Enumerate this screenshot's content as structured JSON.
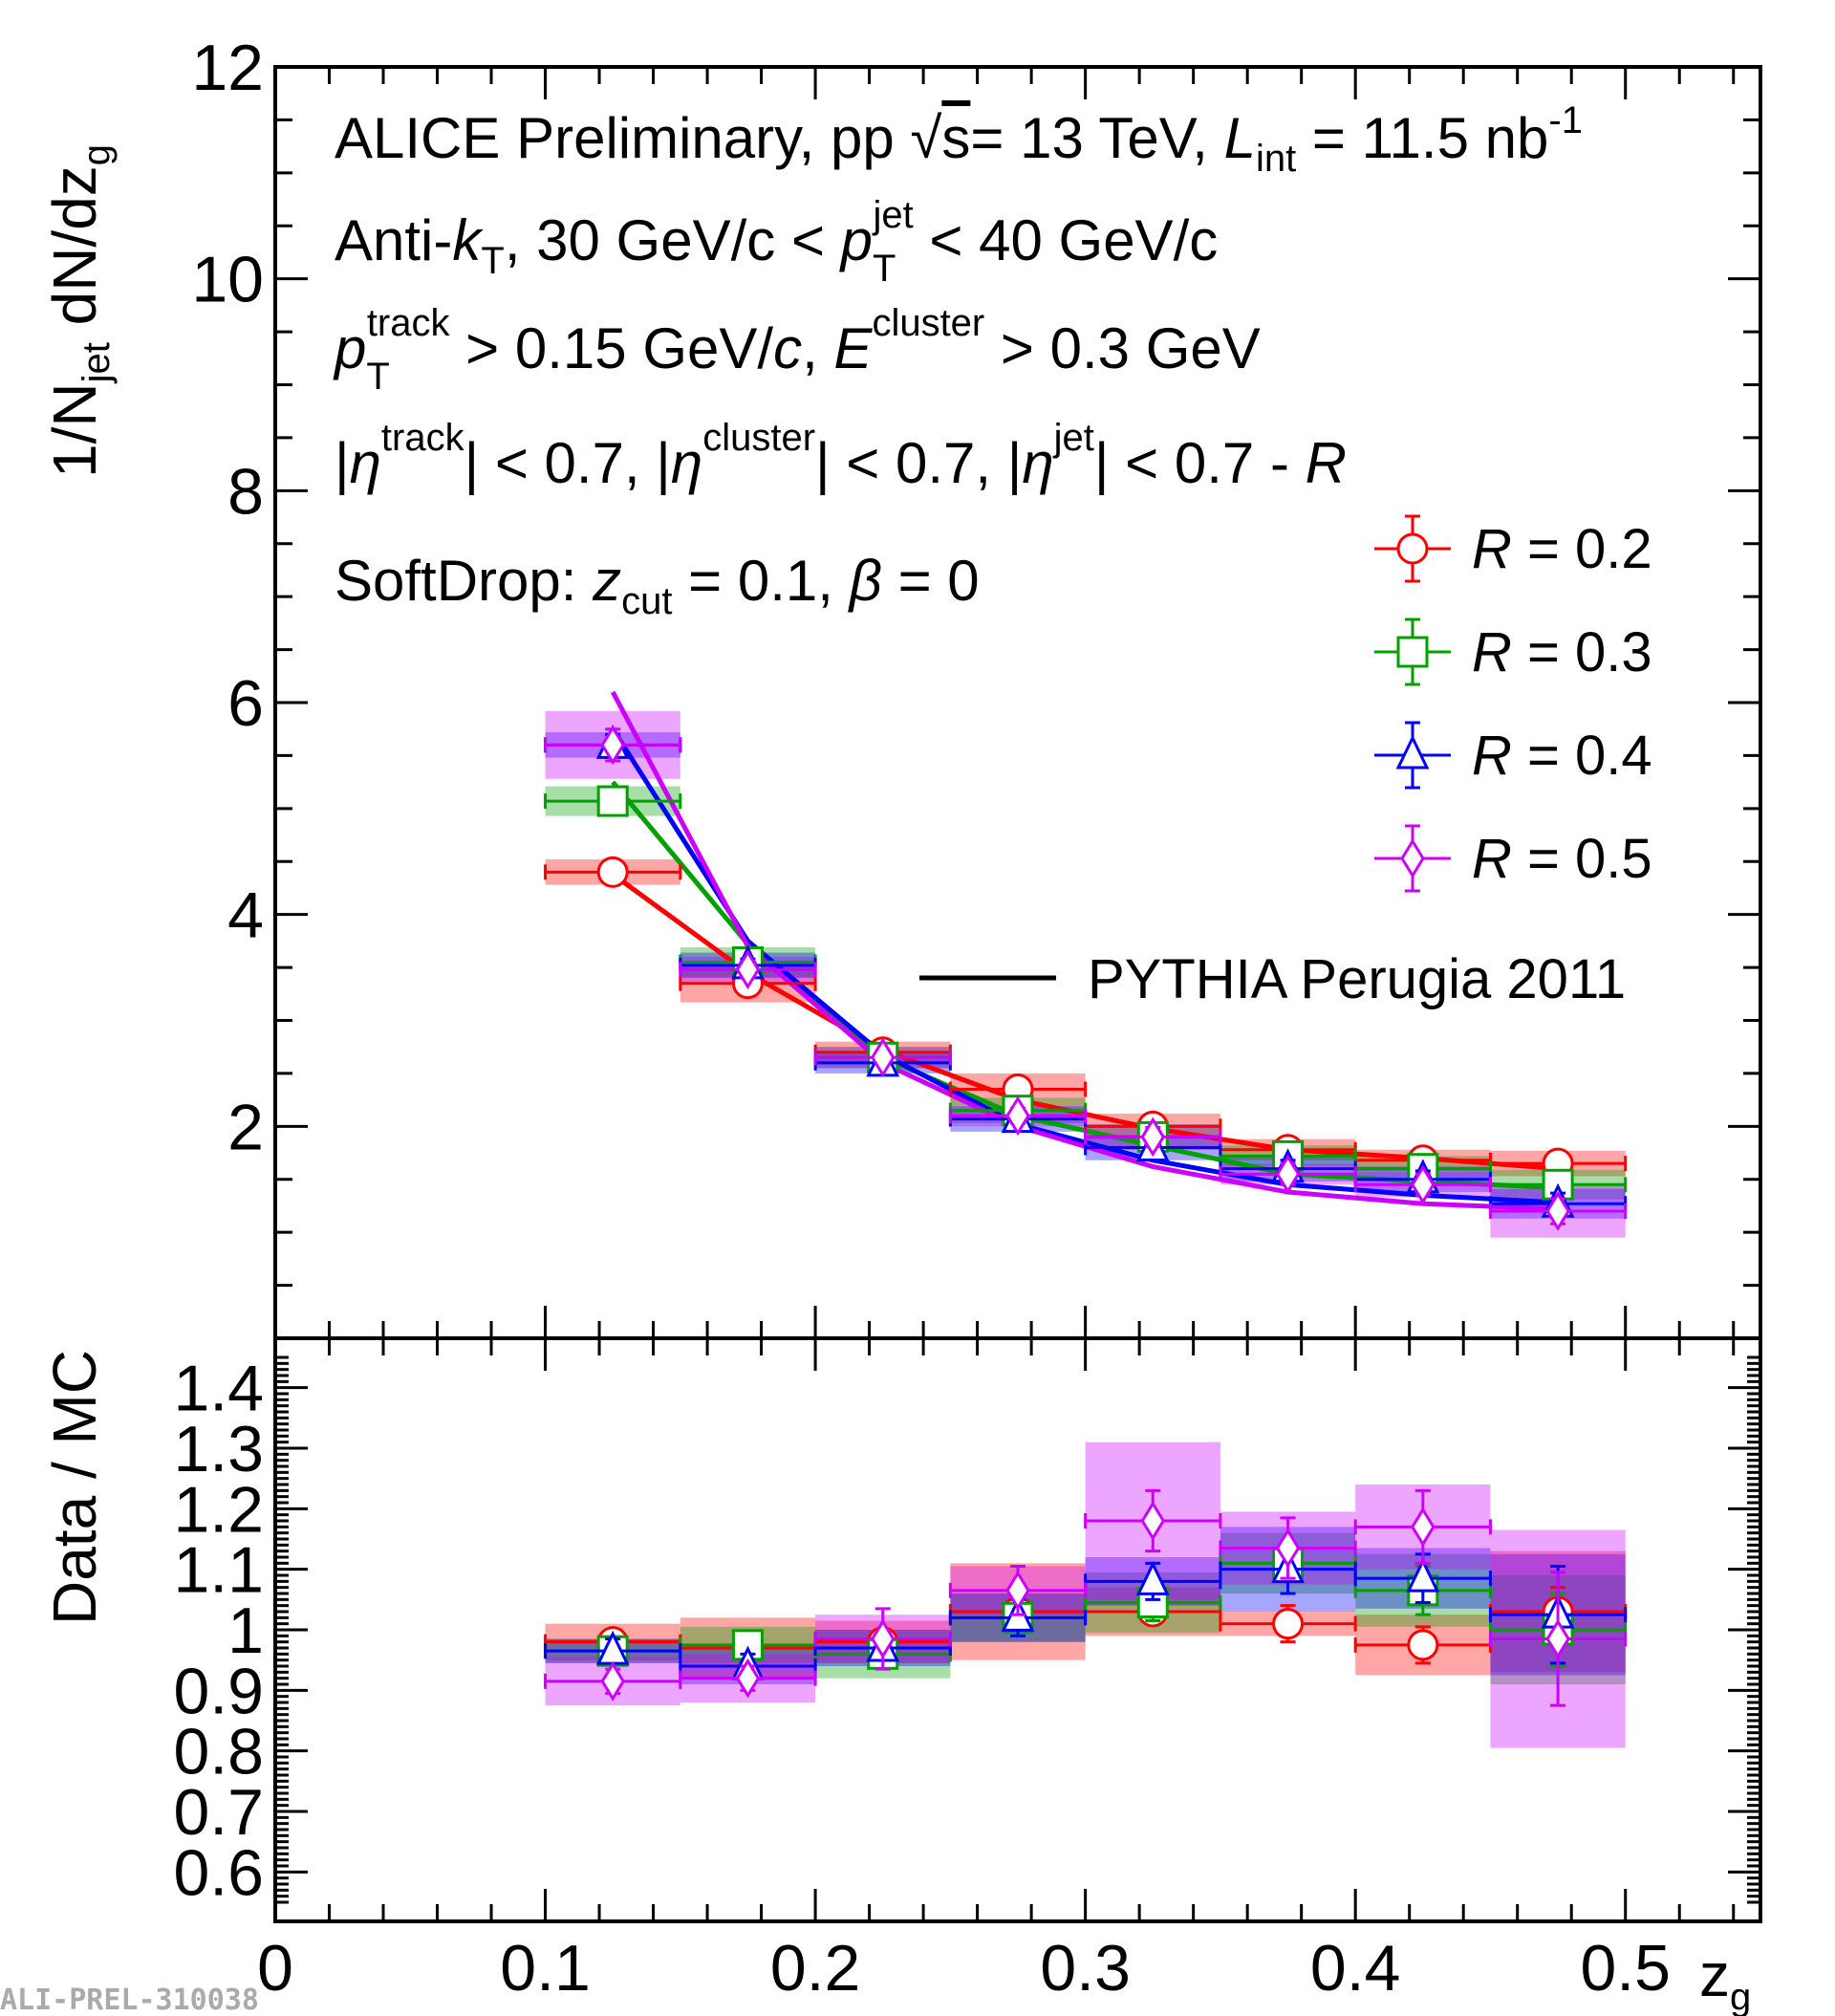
{
  "chart_data": [
    {
      "type": "line",
      "panel": "main",
      "ylabel": "1/N_jet dN/dz_g",
      "ylabel_parts": {
        "pre": "1/N",
        "sub": "jet",
        "mid": " dN/dz",
        "sub2": "g"
      },
      "xlabel": "",
      "xlim": [
        0,
        0.55
      ],
      "ylim": [
        0,
        12
      ],
      "yticks": [
        2,
        4,
        6,
        8,
        10,
        12
      ],
      "yticks_labels": [
        "2",
        "4",
        "6",
        "8",
        "10",
        "12"
      ],
      "bin_edges": [
        0.1,
        0.15,
        0.2,
        0.25,
        0.3,
        0.35,
        0.4,
        0.45,
        0.5
      ],
      "x": [
        0.125,
        0.175,
        0.225,
        0.275,
        0.325,
        0.375,
        0.425,
        0.475
      ],
      "series": [
        {
          "name": "R = 0.2",
          "label": "0.2",
          "color": "#ff0000",
          "marker": "circle",
          "values": [
            4.4,
            3.35,
            2.7,
            2.35,
            2.0,
            1.78,
            1.68,
            1.65
          ],
          "stat_err": [
            0.08,
            0.05,
            0.05,
            0.06,
            0.06,
            0.07,
            0.08,
            0.1
          ],
          "sys_err": [
            0.12,
            0.18,
            0.1,
            0.15,
            0.12,
            0.1,
            0.1,
            0.12
          ],
          "mc": [
            4.38,
            3.45,
            2.72,
            2.25,
            1.98,
            1.78,
            1.7,
            1.6
          ]
        },
        {
          "name": "R = 0.3",
          "label": "0.3",
          "color": "#00a000",
          "marker": "square",
          "values": [
            5.07,
            3.55,
            2.65,
            2.15,
            1.9,
            1.72,
            1.6,
            1.45
          ],
          "stat_err": [
            0.08,
            0.06,
            0.05,
            0.05,
            0.06,
            0.07,
            0.08,
            0.1
          ],
          "sys_err": [
            0.14,
            0.14,
            0.1,
            0.12,
            0.12,
            0.1,
            0.12,
            0.14
          ],
          "mc": [
            5.25,
            3.72,
            2.65,
            2.1,
            1.82,
            1.55,
            1.48,
            1.42
          ]
        },
        {
          "name": "R = 0.4",
          "label": "0.4",
          "color": "#0000ff",
          "marker": "triangle",
          "values": [
            5.6,
            3.52,
            2.6,
            2.07,
            1.8,
            1.6,
            1.5,
            1.27
          ],
          "stat_err": [
            0.1,
            0.06,
            0.05,
            0.06,
            0.07,
            0.08,
            0.08,
            0.1
          ],
          "sys_err": [
            0.12,
            0.12,
            0.1,
            0.12,
            0.12,
            0.12,
            0.12,
            0.14
          ],
          "mc": [
            5.75,
            3.75,
            2.68,
            2.02,
            1.68,
            1.45,
            1.35,
            1.28
          ]
        },
        {
          "name": "R = 0.5",
          "label": "0.5",
          "color": "#cc00ff",
          "marker": "diamond",
          "values": [
            5.6,
            3.48,
            2.65,
            2.1,
            1.9,
            1.55,
            1.45,
            1.2
          ],
          "stat_err": [
            0.15,
            0.08,
            0.06,
            0.07,
            0.09,
            0.1,
            0.1,
            0.12
          ],
          "sys_err": [
            0.32,
            0.12,
            0.1,
            0.1,
            0.12,
            0.1,
            0.12,
            0.25
          ],
          "mc": [
            6.1,
            3.7,
            2.6,
            2.0,
            1.62,
            1.38,
            1.27,
            1.22
          ]
        }
      ]
    },
    {
      "type": "scatter",
      "panel": "ratio",
      "ylabel": "Data / MC",
      "xlabel": "z_g",
      "xlabel_parts": {
        "pre": "z",
        "sub": "g"
      },
      "xlim": [
        0,
        0.55
      ],
      "ylim": [
        0.55,
        1.45
      ],
      "xticks": [
        0,
        0.1,
        0.2,
        0.3,
        0.4,
        0.5
      ],
      "xticks_labels": [
        "0",
        "0.1",
        "0.2",
        "0.3",
        "0.4",
        "0.5"
      ],
      "yticks": [
        0.6,
        0.7,
        0.8,
        0.9,
        1.0,
        1.1,
        1.2,
        1.3,
        1.4
      ],
      "yticks_labels": [
        "0.6",
        "0.7",
        "0.8",
        "0.9",
        "1",
        "1.1",
        "1.2",
        "1.3",
        "1.4"
      ],
      "series": [
        {
          "name": "R = 0.2",
          "color": "#ff0000",
          "marker": "circle",
          "values": [
            0.98,
            0.97,
            0.98,
            1.03,
            1.03,
            1.01,
            0.975,
            1.03
          ],
          "stat_err": [
            0.02,
            0.02,
            0.02,
            0.02,
            0.02,
            0.03,
            0.03,
            0.04
          ],
          "sys_err": [
            0.03,
            0.05,
            0.035,
            0.08,
            0.04,
            0.02,
            0.05,
            0.1
          ]
        },
        {
          "name": "R = 0.3",
          "color": "#00a000",
          "marker": "square",
          "values": [
            0.965,
            0.975,
            0.96,
            1.02,
            1.045,
            1.11,
            1.065,
            1.0
          ],
          "stat_err": [
            0.02,
            0.02,
            0.02,
            0.02,
            0.03,
            0.03,
            0.04,
            0.06
          ],
          "sys_err": [
            0.02,
            0.03,
            0.04,
            0.04,
            0.05,
            0.05,
            0.06,
            0.09
          ]
        },
        {
          "name": "R = 0.4",
          "color": "#0000ff",
          "marker": "triangle",
          "values": [
            0.965,
            0.94,
            0.97,
            1.02,
            1.08,
            1.1,
            1.085,
            1.025
          ],
          "stat_err": [
            0.02,
            0.02,
            0.02,
            0.03,
            0.03,
            0.04,
            0.04,
            0.08
          ],
          "sys_err": [
            0.02,
            0.03,
            0.03,
            0.04,
            0.04,
            0.07,
            0.05,
            0.1
          ]
        },
        {
          "name": "R = 0.5",
          "color": "#cc00ff",
          "marker": "diamond",
          "values": [
            0.915,
            0.92,
            0.985,
            1.065,
            1.18,
            1.135,
            1.17,
            0.985
          ],
          "stat_err": [
            0.02,
            0.02,
            0.05,
            0.04,
            0.05,
            0.05,
            0.06,
            0.11
          ],
          "sys_err": [
            0.04,
            0.04,
            0.04,
            0.04,
            0.13,
            0.06,
            0.07,
            0.18
          ]
        }
      ]
    }
  ],
  "annotations": {
    "line1": {
      "pre": "ALICE Preliminary, pp ",
      "sqrt": "√",
      "s": "s",
      "mid": "= 13 TeV, ",
      "L": "L",
      "int": "int",
      "post": " = 11.5 nb",
      "sup": "-1"
    },
    "line2": {
      "pre": "Anti-",
      "k": "k",
      "T": "T",
      "mid": ", 30 GeV/c < ",
      "p": "p",
      "pT": "T",
      "jet": "jet",
      "post": " < 40 GeV/c"
    },
    "line3": {
      "p": "p",
      "T": "T",
      "track": "track",
      "mid": " > 0.15 GeV/",
      "c": "c",
      "comma": ", ",
      "E": "E",
      "cluster": "cluster",
      "post": " > 0.3 GeV"
    },
    "line4": {
      "a": "|",
      "eta1": "η",
      "track": "track",
      "b": "| < 0.7, |",
      "eta2": "η",
      "cluster": "cluster",
      "c": "| < 0.7, |",
      "eta3": "η",
      "jet": "jet",
      "d": "| < 0.7 - ",
      "R": "R"
    },
    "line5": {
      "pre": "SoftDrop: ",
      "z": "z",
      "cut": "cut",
      "mid": " = 0.1, ",
      "beta": "β",
      "post": " = 0"
    }
  },
  "legend": {
    "R": "R",
    "eq": " = ",
    "model_label": "PYTHIA Perugia 2011"
  },
  "watermark": "ALI-PREL-310038"
}
